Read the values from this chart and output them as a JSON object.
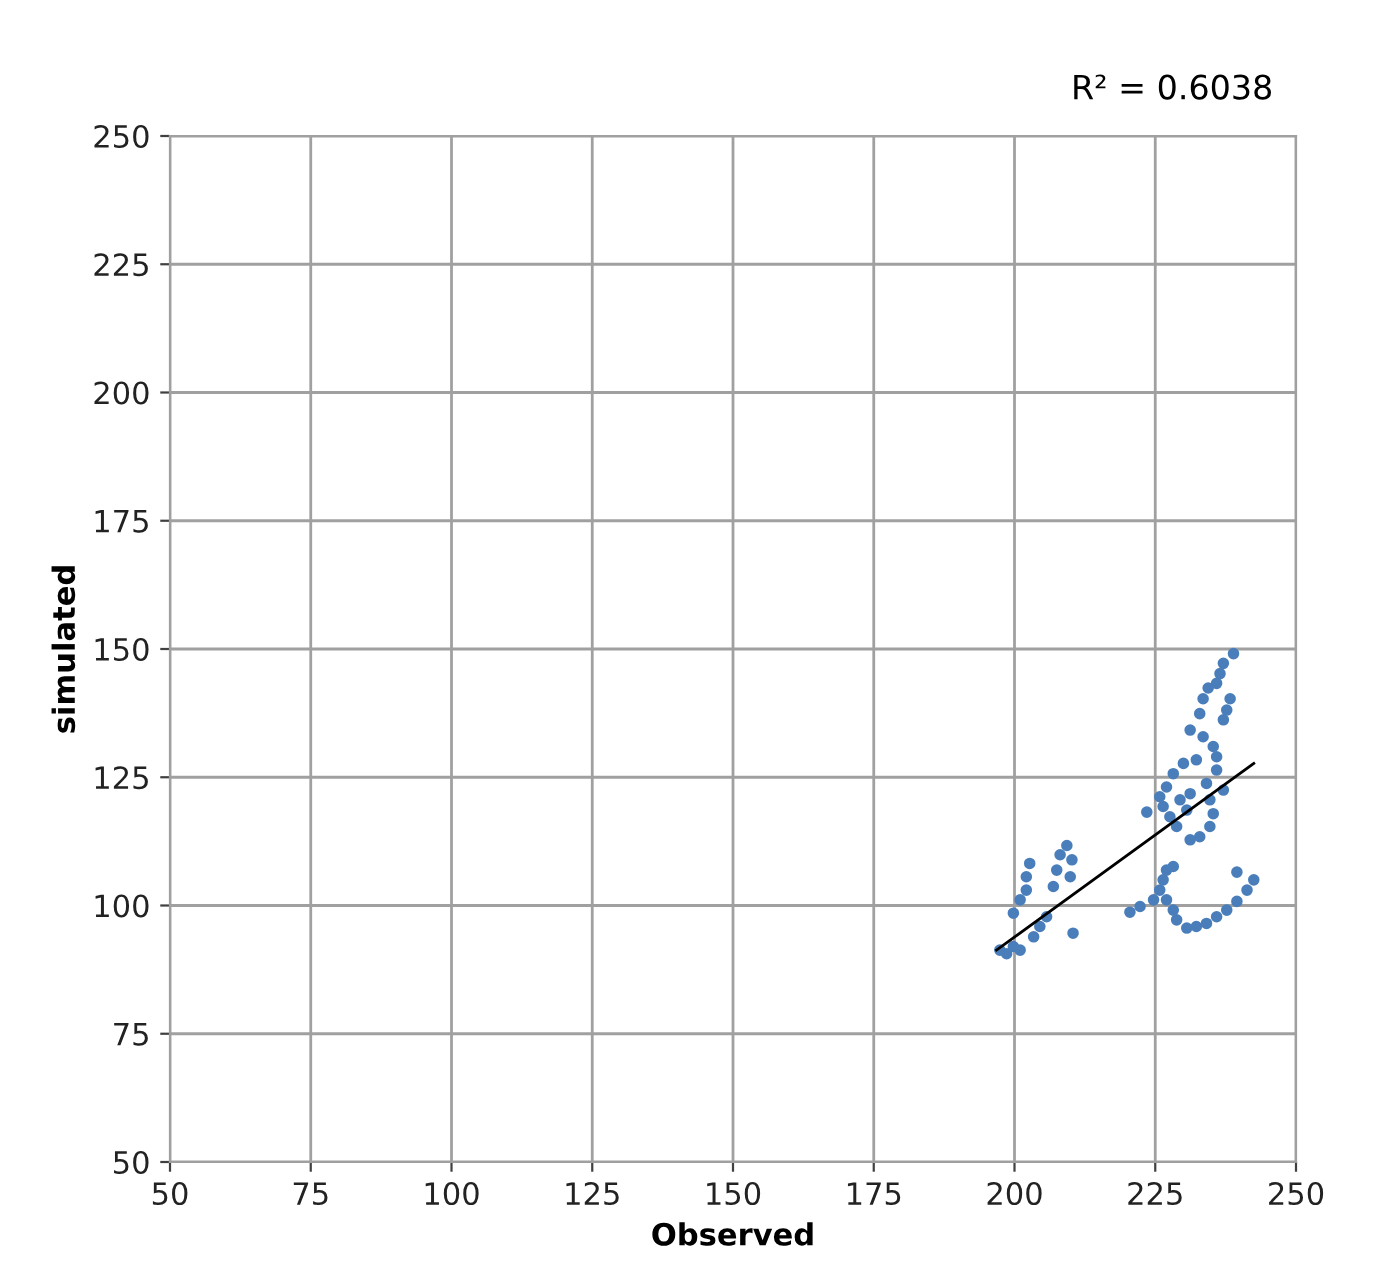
{
  "chart_data": {
    "type": "scatter",
    "xlabel": "Observed",
    "ylabel": "simulated",
    "annotations": [
      "R² = 0.6038"
    ],
    "xlim": [
      50,
      250
    ],
    "ylim": [
      50,
      250
    ],
    "xticks": [
      50,
      75,
      100,
      125,
      150,
      175,
      200,
      225,
      250
    ],
    "yticks": [
      50,
      75,
      100,
      125,
      150,
      175,
      200,
      225,
      250
    ],
    "grid": true,
    "series": [
      {
        "marker": "circle",
        "color": "#4a7ebb",
        "x": [
          197.4,
          198.6,
          199.8,
          201.0,
          199.8,
          201.0,
          202.1,
          202.1,
          202.7,
          209.3,
          208.1,
          207.5,
          206.9,
          209.9,
          210.2,
          210.4,
          204.5,
          205.7,
          203.4,
          238.9,
          237.1,
          236.5,
          235.9,
          234.4,
          233.5,
          238.3,
          237.7,
          237.1,
          232.9,
          231.2,
          233.5,
          235.3,
          235.9,
          232.3,
          230.0,
          228.2,
          227.0,
          225.8,
          226.4,
          227.6,
          228.8,
          231.2,
          232.9,
          234.7,
          235.3,
          234.7,
          234.1,
          235.9,
          237.1,
          231.2,
          229.4,
          230.6,
          223.5,
          220.5,
          222.3,
          224.7,
          225.8,
          226.4,
          227.0,
          228.2,
          227.0,
          228.2,
          228.8,
          230.6,
          232.3,
          234.1,
          235.9,
          237.7,
          239.5,
          241.3,
          242.5,
          239.5
        ],
        "values": [
          91.3,
          90.6,
          92.0,
          91.3,
          98.5,
          101.1,
          103.0,
          105.6,
          108.2,
          111.7,
          109.9,
          106.9,
          103.7,
          105.6,
          108.9,
          94.6,
          95.9,
          97.8,
          93.9,
          149.1,
          147.2,
          145.2,
          143.3,
          142.4,
          140.3,
          140.3,
          138.1,
          136.2,
          137.4,
          134.2,
          132.9,
          131.0,
          129.0,
          128.4,
          127.7,
          125.7,
          123.1,
          121.2,
          119.3,
          117.3,
          115.4,
          112.8,
          113.4,
          115.4,
          117.9,
          120.6,
          123.8,
          126.4,
          122.5,
          121.8,
          120.6,
          118.6,
          118.2,
          98.7,
          99.8,
          101.1,
          103.0,
          105.0,
          106.9,
          107.6,
          101.1,
          99.1,
          97.2,
          95.6,
          95.9,
          96.5,
          97.8,
          99.1,
          100.8,
          103.0,
          105.0,
          106.5
        ]
      },
      {
        "type": "line",
        "color": "#000000",
        "x": [
          196.8,
          242.5
        ],
        "values": [
          91.3,
          127.7
        ]
      }
    ]
  }
}
